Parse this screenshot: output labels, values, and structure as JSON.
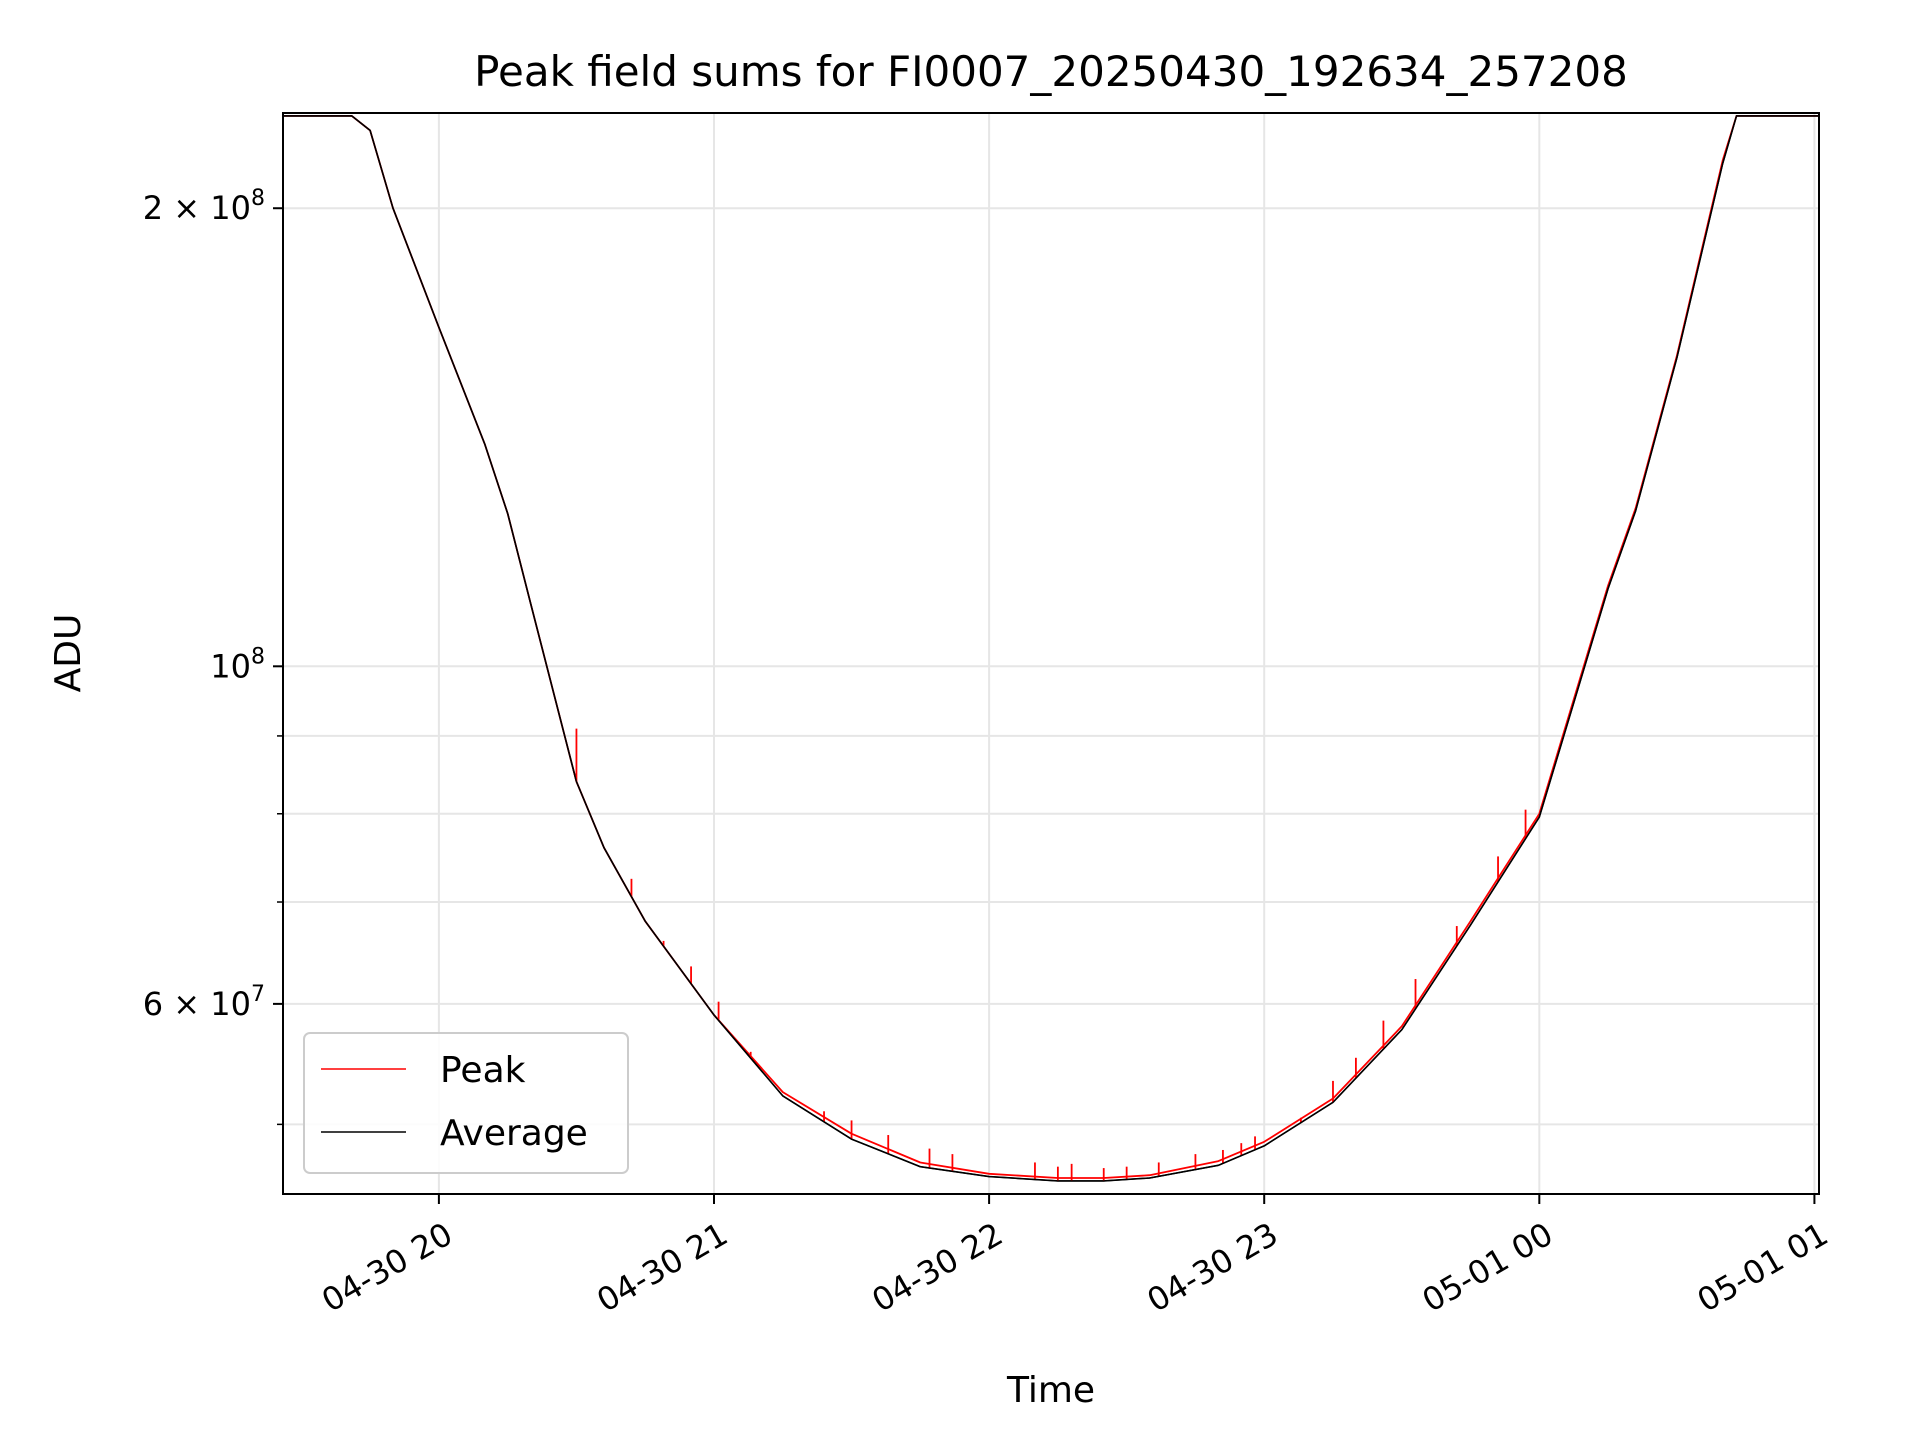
{
  "chart_data": {
    "type": "line",
    "title": "Peak field sums for FI0007_20250430_192634_257208",
    "xlabel": "Time",
    "ylabel": "ADU",
    "yscale": "log",
    "grid": true,
    "legend_placement": "lower-left",
    "xlim": [
      "2025-04-30 19:26",
      "2025-05-01 01:01"
    ],
    "ylim": [
      45000000,
      231000000
    ],
    "x_ticks": [
      {
        "value": "2025-04-30 20:00",
        "label": "04-30 20"
      },
      {
        "value": "2025-04-30 21:00",
        "label": "04-30 21"
      },
      {
        "value": "2025-04-30 22:00",
        "label": "04-30 22"
      },
      {
        "value": "2025-04-30 23:00",
        "label": "04-30 23"
      },
      {
        "value": "2025-05-01 00:00",
        "label": "05-01 00"
      },
      {
        "value": "2025-05-01 01:00",
        "label": "05-01 01"
      }
    ],
    "y_major_ticks": [
      {
        "value": 60000000,
        "base": "6",
        "exp": "7"
      },
      {
        "value": 100000000,
        "base": "",
        "exp": "8"
      },
      {
        "value": 200000000,
        "base": "2",
        "exp": "8"
      }
    ],
    "y_minor_ticks": [
      50000000,
      70000000,
      80000000,
      90000000
    ],
    "series": [
      {
        "name": "Peak",
        "color": "#ff0000",
        "x": [
          "2025-04-30 19:26",
          "2025-04-30 19:41",
          "2025-04-30 19:45",
          "2025-04-30 19:50",
          "2025-04-30 20:00",
          "2025-04-30 20:10",
          "2025-04-30 20:15",
          "2025-04-30 20:20",
          "2025-04-30 20:30",
          "2025-04-30 20:36",
          "2025-04-30 20:45",
          "2025-04-30 21:00",
          "2025-04-30 21:15",
          "2025-04-30 21:30",
          "2025-04-30 21:45",
          "2025-04-30 22:00",
          "2025-04-30 22:15",
          "2025-04-30 22:25",
          "2025-04-30 22:35",
          "2025-04-30 22:50",
          "2025-04-30 23:00",
          "2025-04-30 23:15",
          "2025-04-30 23:30",
          "2025-04-30 23:45",
          "2025-05-01 00:00",
          "2025-05-01 00:07",
          "2025-05-01 00:15",
          "2025-05-01 00:21",
          "2025-05-01 00:30",
          "2025-05-01 00:40",
          "2025-05-01 00:43",
          "2025-05-01 01:01"
        ],
        "values": [
          230000000,
          230000000,
          225000000,
          200000000,
          167000000,
          140000000,
          126000000,
          110000000,
          84000000,
          76000000,
          68000000,
          59000000,
          52500000,
          49300000,
          47200000,
          46400000,
          46100000,
          46100000,
          46300000,
          47300000,
          48700000,
          52000000,
          58000000,
          68000000,
          80000000,
          94000000,
          113000000,
          127000000,
          160000000,
          215000000,
          230000000,
          230000000
        ]
      },
      {
        "name": "Average",
        "color": "#000000",
        "x": [
          "2025-04-30 19:26",
          "2025-04-30 19:41",
          "2025-04-30 19:45",
          "2025-04-30 19:50",
          "2025-04-30 20:00",
          "2025-04-30 20:10",
          "2025-04-30 20:15",
          "2025-04-30 20:20",
          "2025-04-30 20:30",
          "2025-04-30 20:36",
          "2025-04-30 20:45",
          "2025-04-30 21:00",
          "2025-04-30 21:15",
          "2025-04-30 21:30",
          "2025-04-30 21:45",
          "2025-04-30 22:00",
          "2025-04-30 22:15",
          "2025-04-30 22:25",
          "2025-04-30 22:35",
          "2025-04-30 22:50",
          "2025-04-30 23:00",
          "2025-04-30 23:15",
          "2025-04-30 23:30",
          "2025-04-30 23:45",
          "2025-05-01 00:00",
          "2025-05-01 00:07",
          "2025-05-01 00:15",
          "2025-05-01 00:21",
          "2025-05-01 00:30",
          "2025-05-01 00:40",
          "2025-05-01 00:43",
          "2025-05-01 01:01"
        ],
        "values": [
          230000000,
          230000000,
          225000000,
          200000000,
          167000000,
          140000000,
          126000000,
          110000000,
          84000000,
          76000000,
          68000000,
          59000000,
          52200000,
          48900000,
          46900000,
          46200000,
          45900000,
          45900000,
          46100000,
          47000000,
          48400000,
          51700000,
          57700000,
          67600000,
          79600000,
          93500000,
          112500000,
          126500000,
          159500000,
          214000000,
          230000000,
          230000000
        ]
      }
    ],
    "peak_spikes": [
      {
        "x": "2025-04-30 20:30",
        "value": 91000000
      },
      {
        "x": "2025-04-30 20:42",
        "value": 72500000
      },
      {
        "x": "2025-04-30 20:49",
        "value": 66000000
      },
      {
        "x": "2025-04-30 20:55",
        "value": 63500000
      },
      {
        "x": "2025-04-30 21:01",
        "value": 60200000
      },
      {
        "x": "2025-04-30 21:08",
        "value": 55800000
      },
      {
        "x": "2025-04-30 21:24",
        "value": 51000000
      },
      {
        "x": "2025-04-30 21:30",
        "value": 50300000
      },
      {
        "x": "2025-04-30 21:38",
        "value": 49200000
      },
      {
        "x": "2025-04-30 21:47",
        "value": 48200000
      },
      {
        "x": "2025-04-30 21:52",
        "value": 47800000
      },
      {
        "x": "2025-04-30 22:10",
        "value": 47200000
      },
      {
        "x": "2025-04-30 22:15",
        "value": 46900000
      },
      {
        "x": "2025-04-30 22:18",
        "value": 47100000
      },
      {
        "x": "2025-04-30 22:25",
        "value": 46800000
      },
      {
        "x": "2025-04-30 22:30",
        "value": 46900000
      },
      {
        "x": "2025-04-30 22:37",
        "value": 47200000
      },
      {
        "x": "2025-04-30 22:45",
        "value": 47800000
      },
      {
        "x": "2025-04-30 22:51",
        "value": 48100000
      },
      {
        "x": "2025-04-30 22:55",
        "value": 48600000
      },
      {
        "x": "2025-04-30 22:58",
        "value": 49100000
      },
      {
        "x": "2025-04-30 23:08",
        "value": 50500000
      },
      {
        "x": "2025-04-30 23:15",
        "value": 53400000
      },
      {
        "x": "2025-04-30 23:20",
        "value": 55300000
      },
      {
        "x": "2025-04-30 23:26",
        "value": 58500000
      },
      {
        "x": "2025-04-30 23:33",
        "value": 62300000
      },
      {
        "x": "2025-04-30 23:42",
        "value": 67500000
      },
      {
        "x": "2025-04-30 23:51",
        "value": 75000000
      },
      {
        "x": "2025-04-30 23:57",
        "value": 80500000
      }
    ]
  }
}
